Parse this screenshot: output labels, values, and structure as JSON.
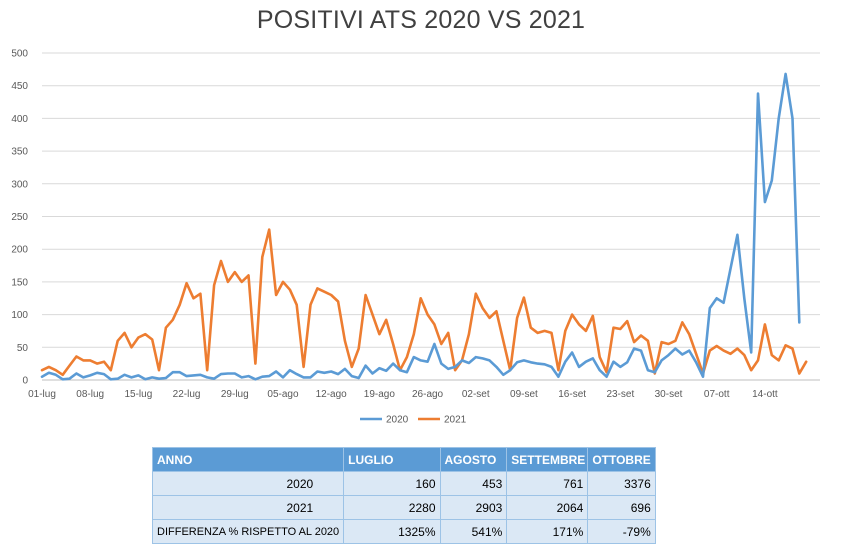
{
  "chart_data": {
    "type": "line",
    "title": "POSITIVI ATS 2020 VS 2021",
    "xlabel": "",
    "ylabel": "",
    "ylim": [
      0,
      500
    ],
    "y_ticks": [
      "0",
      "50",
      "100",
      "150",
      "200",
      "250",
      "300",
      "350",
      "400",
      "450",
      "500"
    ],
    "x_tick_labels": [
      "01-lug",
      "08-lug",
      "15-lug",
      "22-lug",
      "29-lug",
      "05-ago",
      "12-ago",
      "19-ago",
      "26-ago",
      "02-set",
      "09-set",
      "16-set",
      "23-set",
      "30-set",
      "07-ott",
      "14-ott"
    ],
    "grid": true,
    "legend_position": "bottom",
    "series": [
      {
        "name": "2020",
        "color": "#5b9bd5",
        "values": [
          5,
          11,
          8,
          1,
          2,
          10,
          4,
          7,
          11,
          9,
          1,
          2,
          8,
          4,
          7,
          1,
          4,
          2,
          3,
          12,
          12,
          6,
          7,
          8,
          4,
          2,
          9,
          10,
          10,
          4,
          6,
          1,
          5,
          6,
          13,
          4,
          15,
          9,
          4,
          4,
          13,
          11,
          13,
          9,
          17,
          6,
          3,
          22,
          10,
          18,
          14,
          25,
          15,
          12,
          35,
          30,
          28,
          55,
          25,
          17,
          20,
          30,
          26,
          35,
          33,
          30,
          20,
          8,
          15,
          27,
          30,
          27,
          25,
          24,
          20,
          5,
          28,
          42,
          20,
          28,
          33,
          15,
          5,
          28,
          20,
          27,
          48,
          45,
          15,
          12,
          30,
          38,
          48,
          39,
          45,
          27,
          5,
          110,
          125,
          118,
          170,
          222,
          125,
          42,
          438,
          272,
          305,
          400,
          468,
          400,
          88
        ]
      },
      {
        "name": "2021",
        "color": "#ed7d31",
        "values": [
          15,
          20,
          15,
          8,
          22,
          36,
          30,
          30,
          25,
          28,
          15,
          60,
          72,
          50,
          65,
          70,
          62,
          15,
          80,
          92,
          115,
          148,
          125,
          132,
          15,
          145,
          182,
          150,
          165,
          150,
          160,
          25,
          188,
          230,
          130,
          150,
          138,
          115,
          20,
          115,
          140,
          135,
          130,
          120,
          60,
          20,
          48,
          130,
          100,
          70,
          92,
          55,
          15,
          35,
          70,
          125,
          100,
          85,
          55,
          72,
          15,
          30,
          70,
          132,
          110,
          95,
          105,
          60,
          15,
          95,
          126,
          80,
          72,
          75,
          72,
          15,
          75,
          100,
          85,
          75,
          98,
          35,
          12,
          80,
          78,
          90,
          58,
          68,
          60,
          10,
          58,
          55,
          60,
          88,
          70,
          40,
          10,
          45,
          52,
          45,
          40,
          48,
          38,
          15,
          30,
          85,
          38,
          30,
          53,
          48,
          10,
          28
        ]
      }
    ]
  },
  "table": {
    "headers": [
      "ANNO",
      "LUGLIO",
      "AGOSTO",
      "SETTEMBRE",
      "OTTOBRE"
    ],
    "rows": [
      [
        "2020",
        "160",
        "453",
        "761",
        "3376"
      ],
      [
        "2021",
        "2280",
        "2903",
        "2064",
        "696"
      ],
      [
        "DIFFERENZA % RISPETTO AL 2020",
        "1325%",
        "541%",
        "171%",
        "-79%"
      ]
    ]
  }
}
